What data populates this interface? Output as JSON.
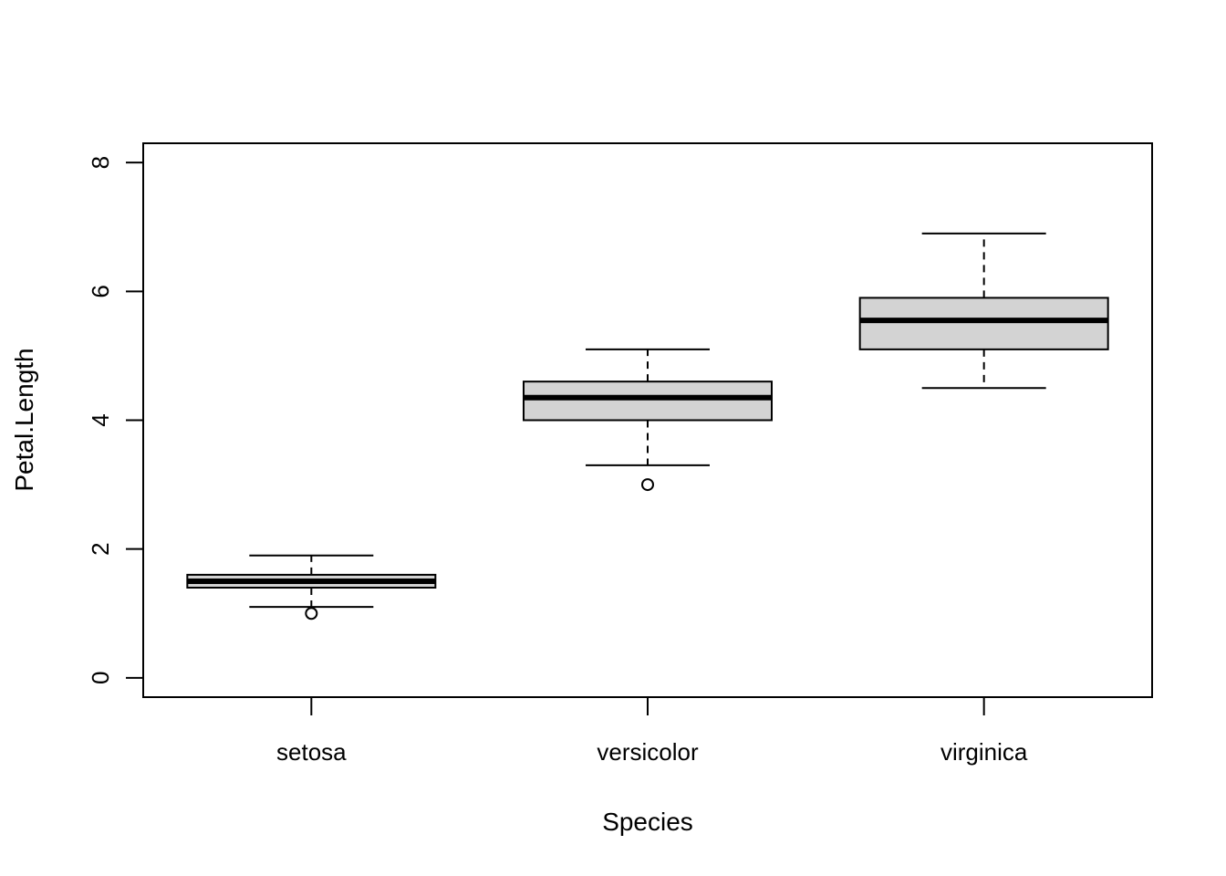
{
  "chart_data": {
    "type": "boxplot",
    "xlabel": "Species",
    "ylabel": "Petal.Length",
    "ylim": [
      -0.3,
      8.3
    ],
    "yticks": [
      0,
      2,
      4,
      6,
      8
    ],
    "categories": [
      "setosa",
      "versicolor",
      "virginica"
    ],
    "boxes": [
      {
        "category": "setosa",
        "whisker_low": 1.1,
        "q1": 1.4,
        "median": 1.5,
        "q3": 1.6,
        "whisker_high": 1.9,
        "outliers": [
          1.0
        ]
      },
      {
        "category": "versicolor",
        "whisker_low": 3.3,
        "q1": 4.0,
        "median": 4.35,
        "q3": 4.6,
        "whisker_high": 5.1,
        "outliers": [
          3.0
        ]
      },
      {
        "category": "virginica",
        "whisker_low": 4.5,
        "q1": 5.1,
        "median": 5.55,
        "q3": 5.9,
        "whisker_high": 6.9,
        "outliers": []
      }
    ],
    "box_fill": "#d3d3d3",
    "line_color": "#000000",
    "grid": false,
    "legend": "none"
  }
}
